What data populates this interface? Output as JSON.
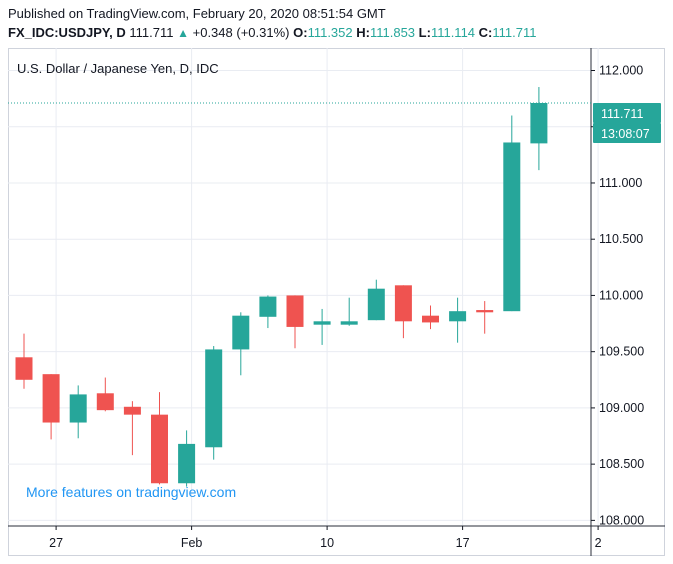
{
  "header": {
    "published": "Published on TradingView.com, February 20, 2020 08:51:54 GMT",
    "symbol": "FX_IDC:USDJPY, D",
    "last": "111.711",
    "change": "+0.348 (+0.31%)",
    "open_label": "O:",
    "open": "111.352",
    "high_label": "H:",
    "high": "111.853",
    "low_label": "L:",
    "low": "111.114",
    "close_label": "C:",
    "close": "111.711"
  },
  "pane_title": "U.S. Dollar / Japanese Yen, D, IDC",
  "promo": "More features on tradingview.com",
  "price_tag": "111.711",
  "countdown_tag": "13:08:07",
  "colors": {
    "up": "#26a69a",
    "down": "#ef5350",
    "grid": "#e9ecf2",
    "axis": "#131722",
    "last_line": "#26a69a"
  },
  "chart_data": {
    "type": "candlestick",
    "title": "U.S. Dollar / Japanese Yen, D, IDC",
    "ylim": [
      107.95,
      112.2
    ],
    "y_ticks": [
      "112.000",
      "111.500",
      "111.000",
      "110.500",
      "110.000",
      "109.500",
      "109.000",
      "108.500",
      "108.000"
    ],
    "x_ticks": [
      {
        "label": "27",
        "index": 1
      },
      {
        "label": "Feb",
        "index": 6
      },
      {
        "label": "10",
        "index": 11
      },
      {
        "label": "17",
        "index": 16
      },
      {
        "label": "2",
        "index": 21
      }
    ],
    "grid": true,
    "last_price": 111.711,
    "candles": [
      {
        "o": 109.45,
        "h": 109.66,
        "l": 109.17,
        "c": 109.25
      },
      {
        "o": 109.3,
        "h": 109.3,
        "l": 108.72,
        "c": 108.87
      },
      {
        "o": 108.87,
        "h": 109.2,
        "l": 108.73,
        "c": 109.12
      },
      {
        "o": 109.13,
        "h": 109.27,
        "l": 108.97,
        "c": 108.98
      },
      {
        "o": 109.01,
        "h": 109.06,
        "l": 108.58,
        "c": 108.94
      },
      {
        "o": 108.94,
        "h": 109.14,
        "l": 108.32,
        "c": 108.33
      },
      {
        "o": 108.33,
        "h": 108.8,
        "l": 108.3,
        "c": 108.68
      },
      {
        "o": 108.65,
        "h": 109.55,
        "l": 108.54,
        "c": 109.52
      },
      {
        "o": 109.52,
        "h": 109.85,
        "l": 109.29,
        "c": 109.82
      },
      {
        "o": 109.81,
        "h": 110.0,
        "l": 109.71,
        "c": 109.99
      },
      {
        "o": 110.0,
        "h": 110.0,
        "l": 109.53,
        "c": 109.72
      },
      {
        "o": 109.74,
        "h": 109.88,
        "l": 109.56,
        "c": 109.77
      },
      {
        "o": 109.74,
        "h": 109.98,
        "l": 109.73,
        "c": 109.77
      },
      {
        "o": 109.78,
        "h": 110.14,
        "l": 109.78,
        "c": 110.06
      },
      {
        "o": 110.09,
        "h": 110.09,
        "l": 109.62,
        "c": 109.77
      },
      {
        "o": 109.82,
        "h": 109.91,
        "l": 109.7,
        "c": 109.76
      },
      {
        "o": 109.77,
        "h": 109.98,
        "l": 109.58,
        "c": 109.86
      },
      {
        "o": 109.87,
        "h": 109.95,
        "l": 109.66,
        "c": 109.85
      },
      {
        "o": 109.86,
        "h": 111.6,
        "l": 109.86,
        "c": 111.36
      },
      {
        "o": 111.352,
        "h": 111.853,
        "l": 111.114,
        "c": 111.711
      }
    ]
  }
}
